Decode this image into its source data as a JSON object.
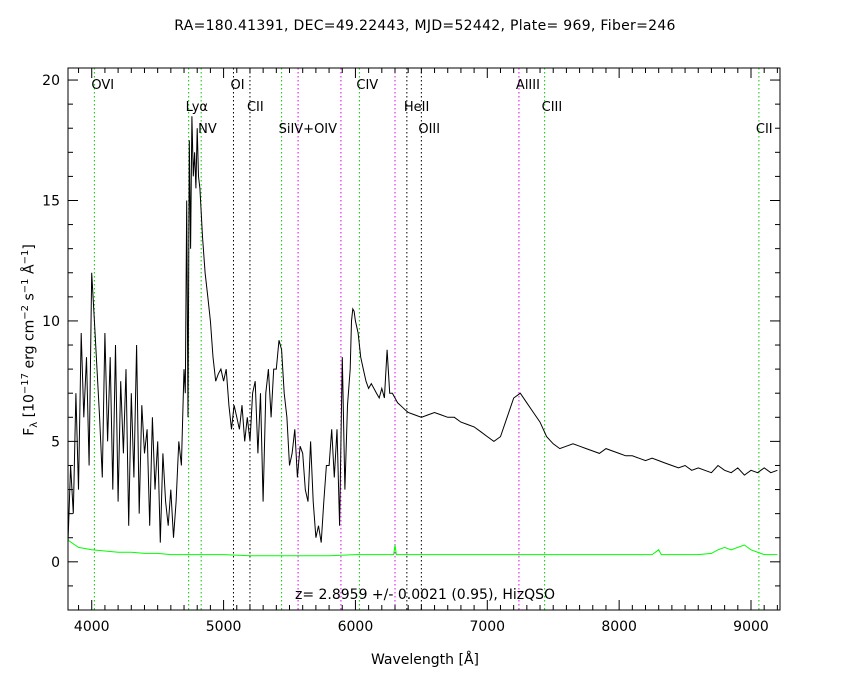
{
  "header": {
    "title": "RA=180.41391, DEC=49.22443, MJD=52442, Plate=  969, Fiber=246"
  },
  "axes": {
    "ylabel_main": "F",
    "ylabel_sub": "λ",
    "ylabel_rest1": " [10",
    "ylabel_exp1": "−17",
    "ylabel_rest2": " erg cm",
    "ylabel_exp2": "−2",
    "ylabel_rest3": " s",
    "ylabel_exp3": "−1",
    "ylabel_rest4": " Å",
    "ylabel_exp4": "−1",
    "ylabel_rest5": "]",
    "xlabel": "Wavelength [Å]"
  },
  "annotation": "z=  2.8959  +/-  0.0021  (0.95),  HizQSO",
  "colors": {
    "spectrum": "#000000",
    "error": "#00ff00",
    "line_green": "#00c800",
    "line_black": "#000000",
    "line_magenta": "#e000e0"
  },
  "chart_data": {
    "type": "line",
    "xlabel": "Wavelength [Å]",
    "ylabel": "Fλ [10^-17 erg cm^-2 s^-1 Å^-1]",
    "xlim": [
      3820,
      9220
    ],
    "ylim": [
      -2,
      20.5
    ],
    "x_ticks": [
      4000,
      5000,
      6000,
      7000,
      8000,
      9000
    ],
    "y_ticks": [
      0,
      5,
      10,
      15,
      20
    ],
    "series": [
      {
        "role": "flux",
        "color": "#000000",
        "x": [
          3820,
          3840,
          3860,
          3880,
          3900,
          3920,
          3940,
          3960,
          3980,
          4000,
          4020,
          4040,
          4060,
          4080,
          4100,
          4120,
          4140,
          4160,
          4180,
          4200,
          4220,
          4240,
          4260,
          4280,
          4300,
          4320,
          4340,
          4360,
          4380,
          4400,
          4420,
          4440,
          4460,
          4480,
          4500,
          4520,
          4540,
          4560,
          4580,
          4600,
          4620,
          4640,
          4660,
          4680,
          4700,
          4710,
          4720,
          4730,
          4740,
          4750,
          4760,
          4770,
          4780,
          4790,
          4800,
          4810,
          4820,
          4840,
          4860,
          4880,
          4900,
          4920,
          4940,
          4960,
          4980,
          5000,
          5020,
          5040,
          5060,
          5080,
          5100,
          5120,
          5140,
          5160,
          5180,
          5200,
          5220,
          5240,
          5260,
          5280,
          5300,
          5320,
          5340,
          5360,
          5380,
          5400,
          5420,
          5440,
          5460,
          5480,
          5500,
          5520,
          5540,
          5560,
          5580,
          5600,
          5620,
          5640,
          5660,
          5680,
          5700,
          5720,
          5740,
          5760,
          5780,
          5800,
          5820,
          5840,
          5860,
          5880,
          5900,
          5920,
          5940,
          5960,
          5970,
          5980,
          5990,
          6000,
          6020,
          6040,
          6060,
          6080,
          6100,
          6120,
          6140,
          6160,
          6180,
          6200,
          6220,
          6240,
          6260,
          6280,
          6300,
          6320,
          6340,
          6360,
          6380,
          6400,
          6450,
          6500,
          6550,
          6600,
          6650,
          6700,
          6750,
          6800,
          6850,
          6900,
          6950,
          7000,
          7050,
          7100,
          7150,
          7200,
          7250,
          7300,
          7350,
          7400,
          7450,
          7500,
          7550,
          7600,
          7650,
          7700,
          7750,
          7800,
          7850,
          7900,
          7950,
          8000,
          8050,
          8100,
          8150,
          8200,
          8250,
          8300,
          8350,
          8400,
          8450,
          8500,
          8550,
          8600,
          8650,
          8700,
          8750,
          8800,
          8850,
          8900,
          8950,
          9000,
          9050,
          9100,
          9150,
          9200
        ],
        "y": [
          0.8,
          4,
          2,
          7,
          3,
          9.5,
          6,
          8.5,
          4,
          12,
          10,
          8,
          6,
          3.5,
          9.5,
          5,
          8.5,
          3,
          9,
          2.5,
          7.5,
          4.5,
          8,
          1.5,
          7,
          3.5,
          9,
          2,
          6.5,
          4.5,
          5.5,
          1.5,
          6,
          3,
          5,
          0.8,
          4.5,
          2.5,
          1.5,
          3,
          1,
          2.5,
          5,
          4,
          8,
          7,
          15,
          6,
          17.5,
          13,
          18.5,
          16,
          17,
          15.5,
          18,
          16,
          15.5,
          13.5,
          12,
          11,
          10,
          8.5,
          7.5,
          7.8,
          8,
          7.5,
          8,
          6.5,
          5.5,
          6.5,
          6,
          5.5,
          6.5,
          5,
          6,
          5,
          7,
          7.5,
          4.5,
          7,
          2.5,
          7,
          8,
          6,
          8,
          8,
          9.2,
          8.8,
          7,
          6,
          4,
          4.5,
          5.5,
          3.5,
          4.8,
          4.5,
          3,
          2.5,
          5,
          2.5,
          1,
          1.5,
          0.8,
          2.5,
          4,
          4,
          5.5,
          3.5,
          5.5,
          1.5,
          8.5,
          3,
          6.5,
          8,
          10,
          10.5,
          10.4,
          10,
          9.5,
          8.5,
          8,
          7.5,
          7.2,
          7.4,
          7.2,
          7,
          6.8,
          7.2,
          6.8,
          8.8,
          7,
          7,
          6.8,
          6.6,
          6.5,
          6.4,
          6.3,
          6.2,
          6.1,
          6,
          6.1,
          6.2,
          6.1,
          6,
          6,
          5.8,
          5.7,
          5.6,
          5.4,
          5.2,
          5,
          5.2,
          6,
          6.8,
          7,
          6.6,
          6.2,
          5.8,
          5.2,
          4.9,
          4.7,
          4.8,
          4.9,
          4.8,
          4.7,
          4.6,
          4.5,
          4.7,
          4.6,
          4.5,
          4.4,
          4.4,
          4.3,
          4.2,
          4.3,
          4.2,
          4.1,
          4,
          3.9,
          4,
          3.8,
          3.9,
          3.8,
          3.7,
          4,
          3.8,
          3.7,
          3.9,
          3.6,
          3.8,
          3.7,
          3.9,
          3.7,
          3.8
        ]
      },
      {
        "role": "error",
        "color": "#00ff00",
        "x": [
          3820,
          3900,
          4000,
          4100,
          4200,
          4300,
          4400,
          4500,
          4600,
          4700,
          4800,
          4900,
          5000,
          5200,
          5400,
          5600,
          5800,
          6000,
          6200,
          6290,
          6300,
          6310,
          6400,
          6600,
          6800,
          7000,
          7200,
          7400,
          7600,
          8000,
          8250,
          8300,
          8320,
          8340,
          8400,
          8600,
          8700,
          8750,
          8800,
          8850,
          8900,
          8950,
          9000,
          9100,
          9200
        ],
        "y": [
          0.9,
          0.6,
          0.5,
          0.45,
          0.4,
          0.4,
          0.35,
          0.35,
          0.3,
          0.3,
          0.3,
          0.3,
          0.3,
          0.25,
          0.25,
          0.25,
          0.25,
          0.3,
          0.3,
          0.3,
          0.7,
          0.3,
          0.3,
          0.3,
          0.3,
          0.3,
          0.3,
          0.3,
          0.3,
          0.3,
          0.3,
          0.5,
          0.3,
          0.3,
          0.3,
          0.3,
          0.35,
          0.5,
          0.6,
          0.5,
          0.6,
          0.7,
          0.5,
          0.3,
          0.3
        ]
      }
    ],
    "emission_lines": [
      {
        "label": "OVI",
        "x": 4020,
        "color": "green",
        "row": 0
      },
      {
        "label": "Lyα",
        "x": 4735,
        "color": "green",
        "row": 1
      },
      {
        "label": "NV",
        "x": 4830,
        "color": "green",
        "row": 2
      },
      {
        "label": "OI",
        "x": 5075,
        "color": "black",
        "row": 0
      },
      {
        "label": "CII",
        "x": 5200,
        "color": "black",
        "row": 1
      },
      {
        "label": "SiIV+OIV",
        "x": 5440,
        "color": "green",
        "row": 2
      },
      {
        "label": "",
        "x": 5565,
        "color": "magenta",
        "row": 2
      },
      {
        "label": "",
        "x": 5890,
        "color": "magenta",
        "row": 2
      },
      {
        "label": "CIV",
        "x": 6030,
        "color": "green",
        "row": 0
      },
      {
        "label": "",
        "x": 6300,
        "color": "magenta",
        "row": 1
      },
      {
        "label": "HeII",
        "x": 6390,
        "color": "black",
        "row": 1
      },
      {
        "label": "OIII",
        "x": 6500,
        "color": "black",
        "row": 2
      },
      {
        "label": "AlIII",
        "x": 7240,
        "color": "magenta",
        "row": 0
      },
      {
        "label": "CIII",
        "x": 7435,
        "color": "green",
        "row": 1
      },
      {
        "label": "CII",
        "x": 9060,
        "color": "green",
        "row": 2
      }
    ]
  }
}
